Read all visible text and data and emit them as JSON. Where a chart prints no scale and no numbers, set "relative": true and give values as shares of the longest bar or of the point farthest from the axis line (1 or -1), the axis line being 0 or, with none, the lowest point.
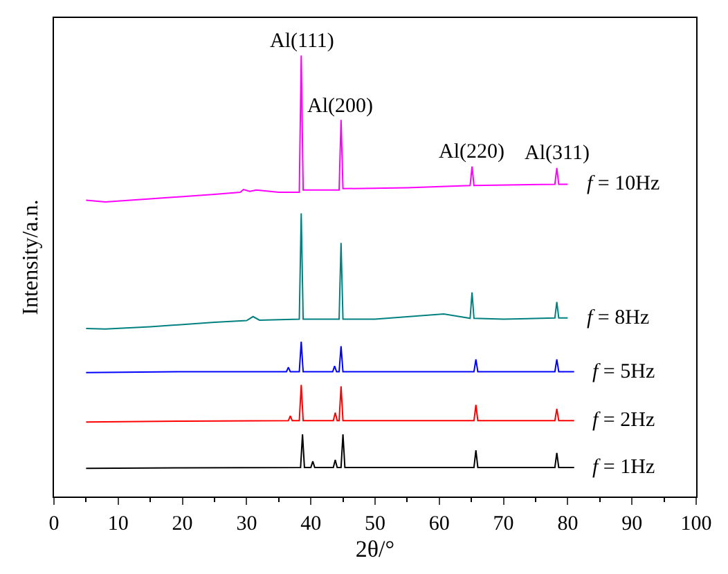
{
  "chart_data": {
    "type": "line",
    "relative": true,
    "xlabel": "2θ/°",
    "ylabel": "Intensity/a.n.",
    "xlim": [
      0,
      100
    ],
    "xticks": [
      0,
      10,
      20,
      30,
      40,
      50,
      60,
      70,
      80,
      90,
      100
    ],
    "legend": false,
    "marker": "none",
    "series": [
      {
        "name": "f = 10Hz",
        "color": "#ff00ff",
        "x": [
          5,
          8,
          15,
          25,
          29,
          29.5,
          30.5,
          31.5,
          35,
          38.2,
          38.5,
          38.8,
          44.4,
          44.7,
          45.0,
          55,
          64.8,
          65.1,
          65.4,
          78.0,
          78.3,
          78.6,
          80
        ],
        "values": [
          0.672,
          0.668,
          0.675,
          0.685,
          0.69,
          0.696,
          0.692,
          0.695,
          0.69,
          0.69,
          1.0,
          0.695,
          0.695,
          0.854,
          0.698,
          0.7,
          0.705,
          0.748,
          0.705,
          0.708,
          0.745,
          0.708,
          0.708
        ]
      },
      {
        "name": "f = 8Hz",
        "color": "#008080",
        "x": [
          5,
          8,
          15,
          25,
          30,
          31,
          32,
          38.2,
          38.5,
          38.8,
          44.4,
          44.7,
          45.0,
          50,
          60.7,
          64.8,
          65.1,
          65.4,
          70,
          78.0,
          78.3,
          78.6,
          80
        ],
        "values": [
          0.381,
          0.38,
          0.385,
          0.395,
          0.399,
          0.408,
          0.4,
          0.402,
          0.642,
          0.402,
          0.402,
          0.575,
          0.402,
          0.402,
          0.414,
          0.404,
          0.463,
          0.404,
          0.402,
          0.405,
          0.441,
          0.405,
          0.405
        ]
      },
      {
        "name": "f = 5Hz",
        "color": "#0000ff",
        "x": [
          5,
          20,
          36.2,
          36.5,
          36.8,
          38.2,
          38.5,
          38.8,
          43.4,
          43.7,
          44.0,
          44.4,
          44.7,
          45.0,
          65.4,
          65.7,
          66.0,
          78.0,
          78.3,
          78.6,
          81
        ],
        "values": [
          0.281,
          0.283,
          0.283,
          0.293,
          0.283,
          0.283,
          0.351,
          0.283,
          0.283,
          0.296,
          0.283,
          0.283,
          0.341,
          0.283,
          0.283,
          0.311,
          0.283,
          0.283,
          0.311,
          0.283,
          0.283
        ]
      },
      {
        "name": "f = 2Hz",
        "color": "#ff0000",
        "x": [
          5,
          20,
          36.5,
          36.8,
          37.1,
          38.2,
          38.5,
          38.8,
          43.5,
          43.8,
          44.1,
          44.4,
          44.7,
          45.0,
          65.4,
          65.7,
          66.0,
          78.0,
          78.3,
          78.6,
          81
        ],
        "values": [
          0.169,
          0.171,
          0.172,
          0.183,
          0.172,
          0.172,
          0.253,
          0.172,
          0.172,
          0.19,
          0.172,
          0.172,
          0.25,
          0.172,
          0.172,
          0.208,
          0.172,
          0.172,
          0.199,
          0.172,
          0.172
        ]
      },
      {
        "name": "f = 1Hz",
        "color": "#000000",
        "x": [
          5,
          20,
          38.4,
          38.7,
          39.0,
          40.0,
          40.3,
          40.6,
          43.5,
          43.8,
          44.1,
          44.7,
          45.0,
          45.3,
          65.4,
          65.7,
          66.0,
          78.0,
          78.3,
          78.6,
          81
        ],
        "values": [
          0.064,
          0.065,
          0.066,
          0.141,
          0.066,
          0.066,
          0.08,
          0.066,
          0.066,
          0.083,
          0.066,
          0.066,
          0.141,
          0.066,
          0.066,
          0.105,
          0.066,
          0.066,
          0.099,
          0.066,
          0.066
        ]
      }
    ],
    "annotations": [
      {
        "text": "Al(111)",
        "x": 38.5,
        "y": 1.0
      },
      {
        "text": "Al(200)",
        "x": 44.7,
        "y": 0.854
      },
      {
        "text": "Al(220)",
        "x": 65.1,
        "y": 0.748
      },
      {
        "text": "Al(311)",
        "x": 78.3,
        "y": 0.745
      }
    ]
  }
}
